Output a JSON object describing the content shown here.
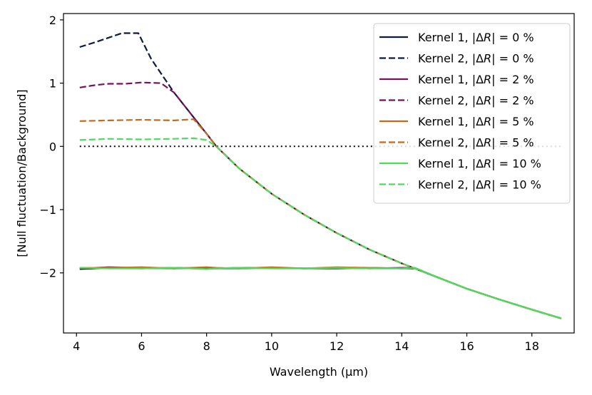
{
  "chart_data": {
    "type": "line",
    "title": "",
    "xlabel": "Wavelength (μm)",
    "ylabel": "[Null fluctuation/Background]",
    "xlim": [
      3.6,
      19.3
    ],
    "ylim": [
      -2.95,
      2.1
    ],
    "xticks": [
      4,
      6,
      8,
      10,
      12,
      14,
      16,
      18
    ],
    "yticks": [
      -2,
      -1,
      0,
      1,
      2
    ],
    "xtick_labels": [
      "4",
      "6",
      "8",
      "10",
      "12",
      "14",
      "16",
      "18"
    ],
    "ytick_labels": [
      "−2",
      "−1",
      "0",
      "1",
      "2"
    ],
    "grid": false,
    "legend_position": "top-right",
    "reference_line": {
      "name": "zero",
      "x": [
        4.1,
        18.9
      ],
      "y": [
        0,
        0
      ],
      "color": "#000000",
      "style": "dotted"
    },
    "series": [
      {
        "name": "Kernel 1, |ΔR| = 0 %",
        "legend_prefix": "Kernel 1, |Δ",
        "legend_suffix": "| = 0 %",
        "color": "#0d1b3d",
        "style": "solid",
        "x": [
          4.1,
          5,
          6,
          7,
          8,
          8.3,
          9,
          10,
          11,
          12,
          13,
          14,
          14.4,
          15,
          16,
          17,
          18,
          18.9
        ],
        "y": [
          -1.94,
          -1.92,
          -1.93,
          -1.92,
          -1.93,
          -1.93,
          -1.92,
          -1.92,
          -1.93,
          -1.93,
          -1.92,
          -1.93,
          -1.93,
          -2.05,
          -2.25,
          -2.42,
          -2.58,
          -2.72
        ]
      },
      {
        "name": "Kernel 2, |ΔR| = 0 %",
        "legend_prefix": "Kernel 2, |Δ",
        "legend_suffix": "| = 0 %",
        "color": "#0d1b3d",
        "style": "dashed",
        "x": [
          4.1,
          4.6,
          5.0,
          5.4,
          5.9,
          6.3,
          7,
          8,
          8.3,
          9,
          10,
          11,
          12,
          13,
          14,
          14.4,
          15,
          16,
          17,
          18,
          18.9
        ],
        "y": [
          1.57,
          1.65,
          1.72,
          1.79,
          1.79,
          1.38,
          0.85,
          0.2,
          0.0,
          -0.35,
          -0.75,
          -1.08,
          -1.37,
          -1.63,
          -1.85,
          -1.93,
          -2.05,
          -2.25,
          -2.42,
          -2.58,
          -2.72
        ]
      },
      {
        "name": "Kernel 1, |ΔR| = 2 %",
        "legend_prefix": "Kernel 1, |Δ",
        "legend_suffix": "| = 2 %",
        "color": "#7a0f5c",
        "style": "solid",
        "x": [
          4.1,
          5,
          6,
          7,
          8,
          8.3,
          9,
          10,
          11,
          12,
          13,
          14,
          14.4,
          15,
          16,
          17,
          18,
          18.9
        ],
        "y": [
          -1.93,
          -1.91,
          -1.92,
          -1.93,
          -1.92,
          -1.93,
          -1.93,
          -1.92,
          -1.93,
          -1.92,
          -1.93,
          -1.92,
          -1.92,
          -2.05,
          -2.25,
          -2.42,
          -2.58,
          -2.72
        ]
      },
      {
        "name": "Kernel 2, |ΔR| = 2 %",
        "legend_prefix": "Kernel 2, |Δ",
        "legend_suffix": "| = 2 %",
        "color": "#7a0f5c",
        "style": "dashed",
        "x": [
          4.1,
          4.6,
          5.0,
          5.5,
          6.0,
          6.6,
          7,
          8,
          8.3,
          9,
          10,
          11,
          12,
          13,
          14,
          14.4,
          15,
          16,
          17,
          18,
          18.9
        ],
        "y": [
          0.93,
          0.97,
          0.99,
          0.99,
          1.01,
          1.0,
          0.85,
          0.2,
          0.0,
          -0.35,
          -0.75,
          -1.08,
          -1.37,
          -1.63,
          -1.85,
          -1.93,
          -2.05,
          -2.25,
          -2.42,
          -2.58,
          -2.72
        ]
      },
      {
        "name": "Kernel 1, |ΔR| = 5 %",
        "legend_prefix": "Kernel 1, |Δ",
        "legend_suffix": "| = 5 %",
        "color": "#c46a1c",
        "style": "solid",
        "x": [
          4.1,
          5,
          6,
          7,
          8,
          8.3,
          9,
          10,
          11,
          12,
          13,
          14,
          14.4,
          15,
          16,
          17,
          18,
          18.9
        ],
        "y": [
          -1.92,
          -1.92,
          -1.91,
          -1.93,
          -1.91,
          -1.92,
          -1.93,
          -1.91,
          -1.93,
          -1.91,
          -1.92,
          -1.93,
          -1.92,
          -2.05,
          -2.25,
          -2.42,
          -2.58,
          -2.72
        ]
      },
      {
        "name": "Kernel 2, |ΔR| = 5 %",
        "legend_prefix": "Kernel 2, |Δ",
        "legend_suffix": "| = 5 %",
        "color": "#c46a1c",
        "style": "dashed",
        "x": [
          4.1,
          5,
          6,
          7,
          7.6,
          8,
          8.3,
          9,
          10,
          11,
          12,
          13,
          14,
          14.4,
          15,
          16,
          17,
          18,
          18.9
        ],
        "y": [
          0.4,
          0.41,
          0.42,
          0.41,
          0.43,
          0.2,
          0.0,
          -0.35,
          -0.75,
          -1.08,
          -1.37,
          -1.63,
          -1.85,
          -1.93,
          -2.05,
          -2.25,
          -2.42,
          -2.58,
          -2.72
        ]
      },
      {
        "name": "Kernel 1, |ΔR| = 10 %",
        "legend_prefix": "Kernel 1, |Δ",
        "legend_suffix": "| = 10 %",
        "color": "#4ddb5c",
        "style": "solid",
        "x": [
          4.1,
          5,
          6,
          7,
          8,
          8.3,
          9,
          10,
          11,
          12,
          13,
          14,
          14.4,
          15,
          16,
          17,
          18,
          18.9
        ],
        "y": [
          -1.92,
          -1.93,
          -1.93,
          -1.92,
          -1.94,
          -1.93,
          -1.92,
          -1.93,
          -1.93,
          -1.92,
          -1.93,
          -1.93,
          -1.92,
          -2.05,
          -2.25,
          -2.42,
          -2.58,
          -2.72
        ]
      },
      {
        "name": "Kernel 2, |ΔR| = 10 %",
        "legend_prefix": "Kernel 2, |Δ",
        "legend_suffix": "| = 10 %",
        "color": "#4ddb5c",
        "style": "dashed",
        "x": [
          4.1,
          5,
          6,
          7,
          7.6,
          8,
          8.3,
          9,
          10,
          11,
          12,
          13,
          14,
          14.4,
          15,
          16,
          17,
          18,
          18.9
        ],
        "y": [
          0.1,
          0.12,
          0.11,
          0.12,
          0.13,
          0.1,
          0.0,
          -0.35,
          -0.75,
          -1.08,
          -1.37,
          -1.63,
          -1.85,
          -1.93,
          -2.05,
          -2.25,
          -2.42,
          -2.58,
          -2.72
        ]
      }
    ]
  }
}
